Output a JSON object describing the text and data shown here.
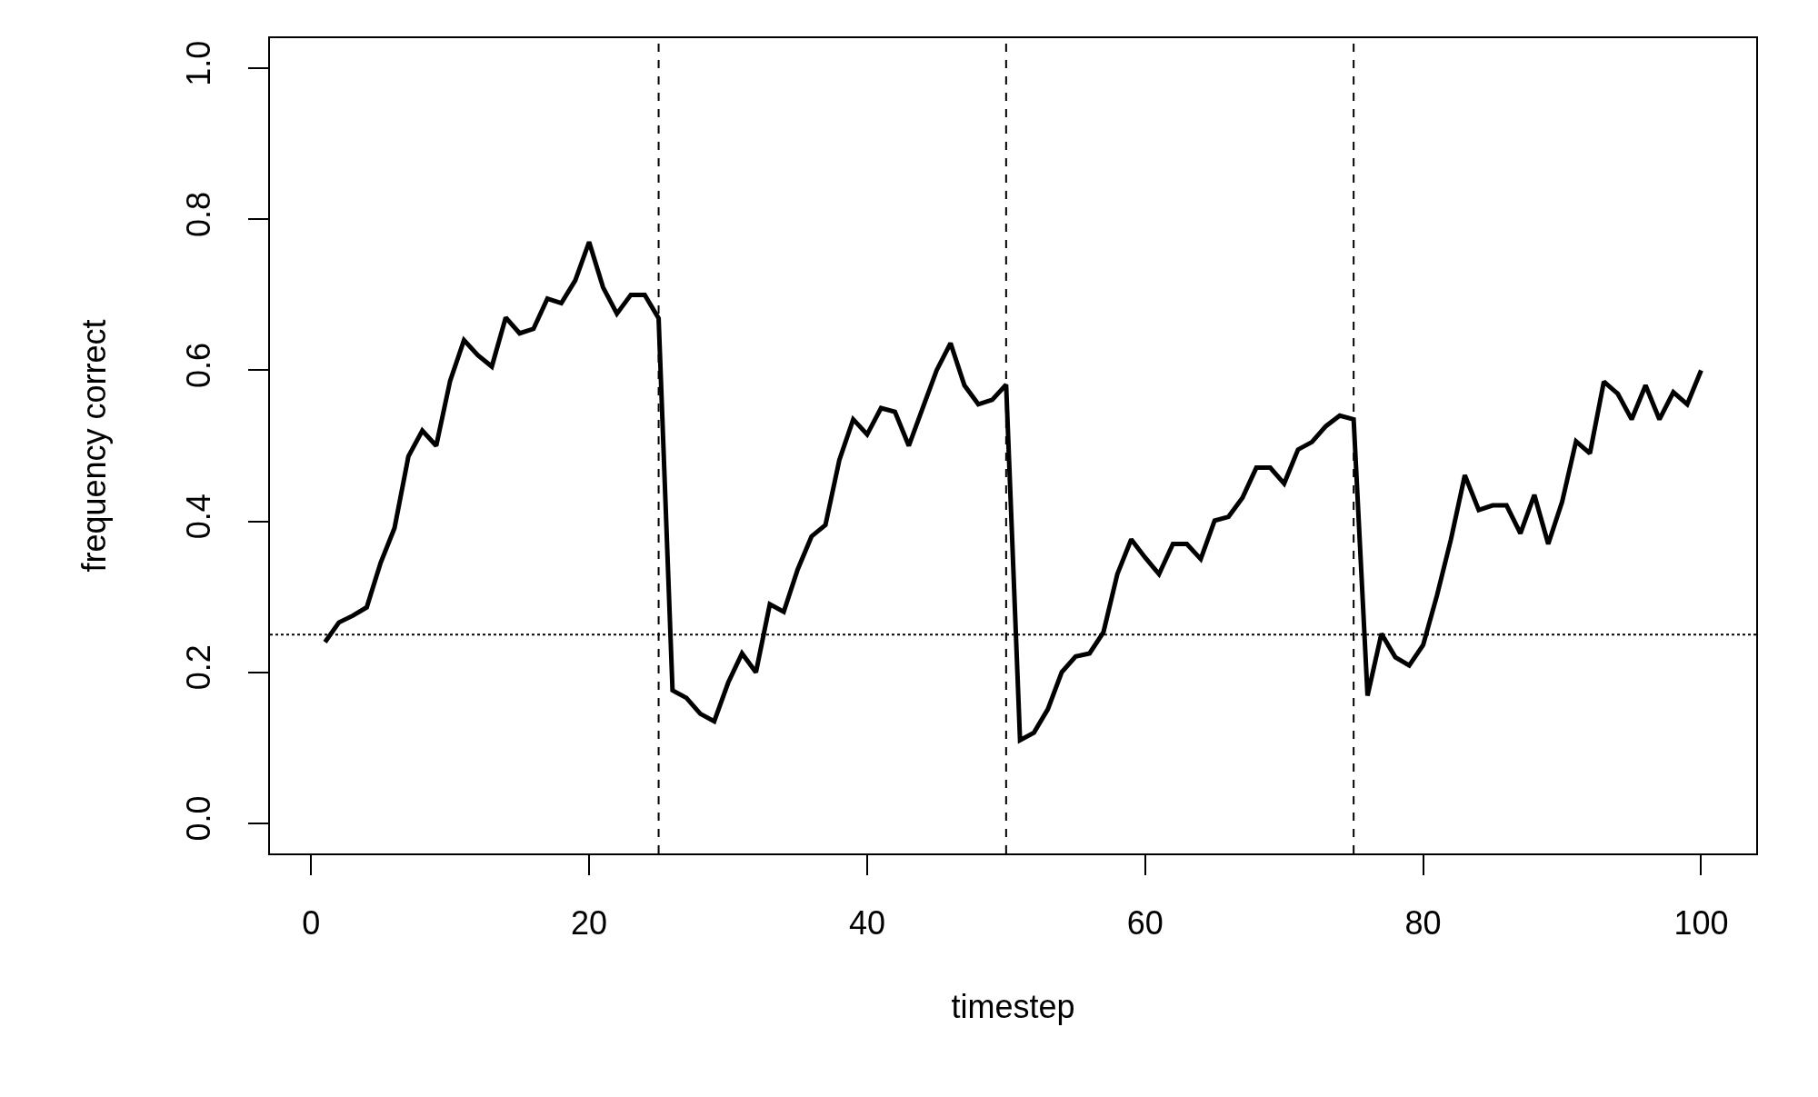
{
  "chart_data": {
    "type": "line",
    "xlabel": "timestep",
    "ylabel": "frequency correct",
    "x": [
      1,
      2,
      3,
      4,
      5,
      6,
      7,
      8,
      9,
      10,
      11,
      12,
      13,
      14,
      15,
      16,
      17,
      18,
      19,
      20,
      21,
      22,
      23,
      24,
      25,
      26,
      27,
      28,
      29,
      30,
      31,
      32,
      33,
      34,
      35,
      36,
      37,
      38,
      39,
      40,
      41,
      42,
      43,
      44,
      45,
      46,
      47,
      48,
      49,
      50,
      51,
      52,
      53,
      54,
      55,
      56,
      57,
      58,
      59,
      60,
      61,
      62,
      63,
      64,
      65,
      66,
      67,
      68,
      69,
      70,
      71,
      72,
      73,
      74,
      75,
      76,
      77,
      78,
      79,
      80,
      81,
      82,
      83,
      84,
      85,
      86,
      87,
      88,
      89,
      90,
      91,
      92,
      93,
      94,
      95,
      96,
      97,
      98,
      99,
      100
    ],
    "series": [
      {
        "color": "#000000",
        "values": [
          0.24,
          0.266,
          0.275,
          0.286,
          0.345,
          0.391,
          0.486,
          0.52,
          0.5,
          0.586,
          0.64,
          0.62,
          0.605,
          0.67,
          0.649,
          0.655,
          0.695,
          0.689,
          0.719,
          0.77,
          0.71,
          0.675,
          0.7,
          0.7,
          0.669,
          0.176,
          0.166,
          0.145,
          0.135,
          0.186,
          0.225,
          0.2,
          0.29,
          0.28,
          0.336,
          0.38,
          0.395,
          0.481,
          0.535,
          0.515,
          0.55,
          0.545,
          0.5,
          0.55,
          0.6,
          0.636,
          0.58,
          0.555,
          0.561,
          0.581,
          0.11,
          0.12,
          0.151,
          0.2,
          0.221,
          0.225,
          0.253,
          0.33,
          0.376,
          0.352,
          0.33,
          0.37,
          0.37,
          0.35,
          0.401,
          0.406,
          0.431,
          0.471,
          0.471,
          0.45,
          0.495,
          0.505,
          0.526,
          0.54,
          0.535,
          0.169,
          0.251,
          0.22,
          0.209,
          0.236,
          0.302,
          0.376,
          0.461,
          0.415,
          0.421,
          0.421,
          0.384,
          0.435,
          0.37,
          0.426,
          0.506,
          0.49,
          0.585,
          0.569,
          0.535,
          0.58,
          0.535,
          0.571,
          0.555,
          0.6
        ]
      }
    ],
    "xlim": [
      -2.96,
      103.96
    ],
    "xticks": [
      0,
      20,
      40,
      60,
      80,
      100
    ],
    "ylim": [
      -0.04,
      1.04
    ],
    "yticks": [
      {
        "value": 0,
        "label": "0.0"
      },
      0.2,
      0.4,
      0.6,
      0.8,
      {
        "value": 1,
        "label": "1.0"
      }
    ],
    "ref_lines": [
      {
        "axis": "x",
        "value": 25,
        "color": "#000000",
        "line_style": "dashed"
      },
      {
        "axis": "x",
        "value": 50,
        "color": "#000000",
        "line_style": "dashed"
      },
      {
        "axis": "x",
        "value": 75,
        "color": "#000000",
        "line_style": "dashed"
      },
      {
        "axis": "y",
        "value": 0.25,
        "color": "#000000",
        "line_style": "dotted"
      }
    ]
  }
}
